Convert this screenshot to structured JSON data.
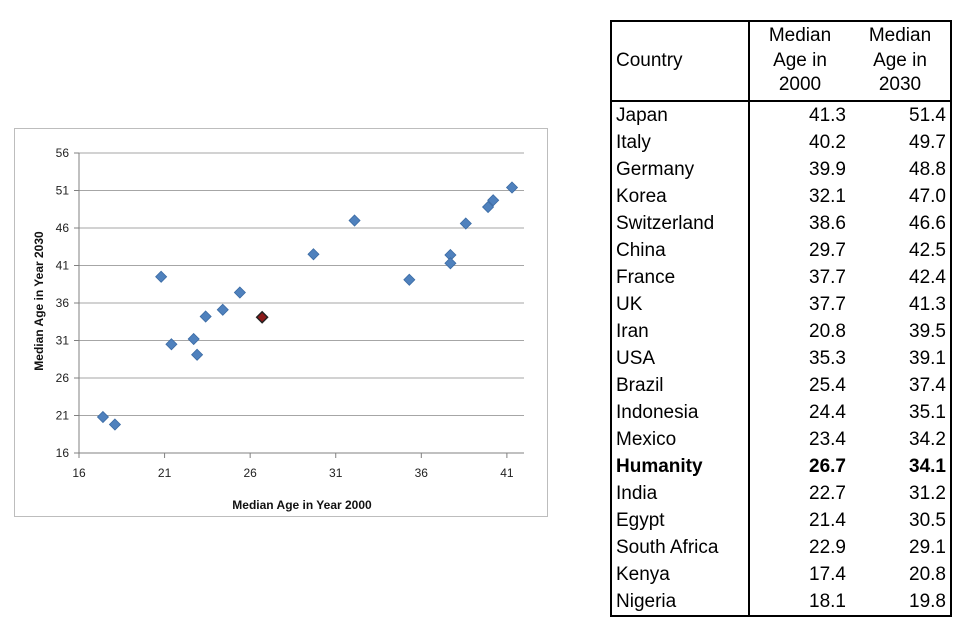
{
  "chart_data": {
    "type": "scatter",
    "xlabel": "Median Age in Year 2000",
    "ylabel": "Median Age in Year 2030",
    "xlim": [
      16,
      42
    ],
    "ylim": [
      16,
      56
    ],
    "xticks": [
      16,
      21,
      26,
      31,
      36,
      41
    ],
    "yticks": [
      16,
      21,
      26,
      31,
      36,
      41,
      46,
      51,
      56
    ],
    "grid": "horizontal",
    "series": [
      {
        "color": "#4f81bd",
        "marker": "diamond",
        "points": [
          {
            "x": 41.3,
            "y": 51.4
          },
          {
            "x": 40.2,
            "y": 49.7
          },
          {
            "x": 39.9,
            "y": 48.8
          },
          {
            "x": 32.1,
            "y": 47.0
          },
          {
            "x": 38.6,
            "y": 46.6
          },
          {
            "x": 29.7,
            "y": 42.5
          },
          {
            "x": 37.7,
            "y": 42.4
          },
          {
            "x": 37.7,
            "y": 41.3
          },
          {
            "x": 20.8,
            "y": 39.5
          },
          {
            "x": 35.3,
            "y": 39.1
          },
          {
            "x": 25.4,
            "y": 37.4
          },
          {
            "x": 24.4,
            "y": 35.1
          },
          {
            "x": 23.4,
            "y": 34.2
          },
          {
            "x": 22.7,
            "y": 31.2
          },
          {
            "x": 21.4,
            "y": 30.5
          },
          {
            "x": 22.9,
            "y": 29.1
          },
          {
            "x": 17.4,
            "y": 20.8
          },
          {
            "x": 18.1,
            "y": 19.8
          }
        ]
      },
      {
        "color": "#8b1a1a",
        "marker": "diamond",
        "points": [
          {
            "x": 26.7,
            "y": 34.1
          }
        ]
      }
    ]
  },
  "table": {
    "headers": {
      "country": "Country",
      "y2000": [
        "Median",
        "Age in",
        "2000"
      ],
      "y2030": [
        "Median",
        "Age in",
        "2030"
      ]
    },
    "rows": [
      {
        "country": "Japan",
        "y2000": "41.3",
        "y2030": "51.4",
        "bold": false
      },
      {
        "country": "Italy",
        "y2000": "40.2",
        "y2030": "49.7",
        "bold": false
      },
      {
        "country": "Germany",
        "y2000": "39.9",
        "y2030": "48.8",
        "bold": false
      },
      {
        "country": "Korea",
        "y2000": "32.1",
        "y2030": "47.0",
        "bold": false
      },
      {
        "country": "Switzerland",
        "y2000": "38.6",
        "y2030": "46.6",
        "bold": false
      },
      {
        "country": "China",
        "y2000": "29.7",
        "y2030": "42.5",
        "bold": false
      },
      {
        "country": "France",
        "y2000": "37.7",
        "y2030": "42.4",
        "bold": false
      },
      {
        "country": "UK",
        "y2000": "37.7",
        "y2030": "41.3",
        "bold": false
      },
      {
        "country": "Iran",
        "y2000": "20.8",
        "y2030": "39.5",
        "bold": false
      },
      {
        "country": "USA",
        "y2000": "35.3",
        "y2030": "39.1",
        "bold": false
      },
      {
        "country": "Brazil",
        "y2000": "25.4",
        "y2030": "37.4",
        "bold": false
      },
      {
        "country": "Indonesia",
        "y2000": "24.4",
        "y2030": "35.1",
        "bold": false
      },
      {
        "country": "Mexico",
        "y2000": "23.4",
        "y2030": "34.2",
        "bold": false
      },
      {
        "country": "Humanity",
        "y2000": "26.7",
        "y2030": "34.1",
        "bold": true
      },
      {
        "country": "India",
        "y2000": "22.7",
        "y2030": "31.2",
        "bold": false
      },
      {
        "country": "Egypt",
        "y2000": "21.4",
        "y2030": "30.5",
        "bold": false
      },
      {
        "country": "South Africa",
        "y2000": "22.9",
        "y2030": "29.1",
        "bold": false
      },
      {
        "country": "Kenya",
        "y2000": "17.4",
        "y2030": "20.8",
        "bold": false
      },
      {
        "country": "Nigeria",
        "y2000": "18.1",
        "y2030": "19.8",
        "bold": false
      }
    ]
  }
}
